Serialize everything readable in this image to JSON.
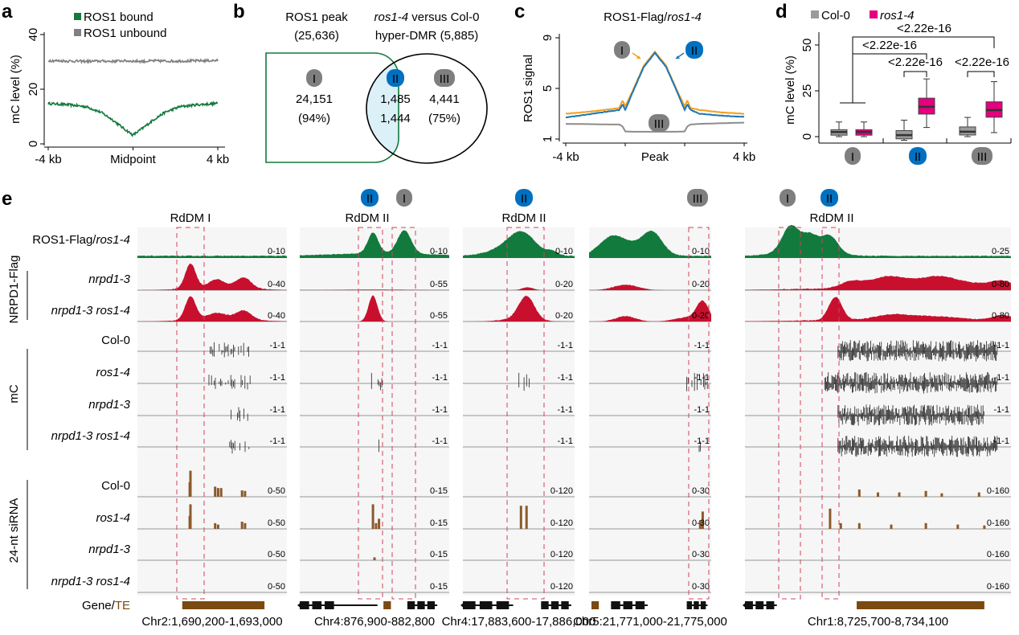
{
  "panel_labels": {
    "a": "a",
    "b": "b",
    "c": "c",
    "d": "d",
    "e": "e"
  },
  "colors": {
    "ros1_green": "#127a3c",
    "nrpd1_red": "#c8102e",
    "sirna_brown": "#8b5a2b",
    "te_brown": "#7a4a10",
    "col0_gray": "#9a9a9a",
    "ros1_4_magenta": "#e4007f",
    "badge_gray": "#7f7f7f",
    "badge_blue": "#0070c0",
    "overlap_fill": "#dcf0f8",
    "curve_orange": "#f0a020",
    "curve_blue": "#1f77b4",
    "dashed_box": "#d0435a"
  },
  "badges": {
    "I": "I",
    "II": "II",
    "III": "III"
  },
  "panel_b": {
    "left_title": "ROS1 peak",
    "left_count": "(25,636)",
    "right_title_italic": "ros1-4",
    "right_title_rest": " versus Col-0",
    "right_count": "hyper-DMR (5,885)",
    "region_I": {
      "count": "24,151",
      "percent": "(94%)"
    },
    "region_II": {
      "count_peak": "1,485",
      "count_dmr": "1,444"
    },
    "region_III": {
      "count": "4,441",
      "percent": "(75%)"
    }
  },
  "chart_data": [
    {
      "type": "line",
      "panel": "a",
      "ylabel": "mC level (%)",
      "ylim": [
        0,
        40
      ],
      "yticks": [
        "0",
        "20",
        "40"
      ],
      "xticks": [
        "-4 kb",
        "Midpoint",
        "4 kb"
      ],
      "x_kb": [
        -4,
        -3,
        -2.2,
        -1.5,
        -1,
        -0.5,
        0,
        0.5,
        1,
        1.5,
        2.2,
        3,
        4
      ],
      "legend_position": "top",
      "series": [
        {
          "name": "ROS1 bound",
          "color": "#127a3c",
          "y": [
            14.8,
            14.3,
            13.6,
            11.5,
            9.0,
            6.0,
            3.2,
            6.0,
            9.0,
            11.5,
            13.6,
            14.3,
            14.8
          ]
        },
        {
          "name": "ROS1 unbound",
          "color": "#808080",
          "y": [
            30.5,
            30.3,
            30.2,
            30.3,
            30.2,
            30.4,
            30.3,
            30.2,
            30.4,
            30.3,
            30.3,
            30.4,
            30.5
          ]
        }
      ]
    },
    {
      "type": "line",
      "panel": "c",
      "title_prefix": "ROS1-Flag/",
      "title_italic": "ros1-4",
      "ylabel": "ROS1 signal",
      "ylim": [
        1,
        9
      ],
      "yticks": [
        "1",
        "5",
        "9"
      ],
      "xticks": [
        "-4 kb",
        "Peak",
        "4 kb"
      ],
      "x": [
        -4,
        -3,
        -2,
        -1.6,
        -1.45,
        -1.33,
        -1,
        -0.5,
        0,
        0.5,
        1,
        1.33,
        1.45,
        1.6,
        2,
        3,
        4
      ],
      "series": [
        {
          "name": "I",
          "color": "#f0a020",
          "y": [
            3.0,
            3.15,
            3.35,
            3.45,
            4.05,
            3.6,
            4.8,
            6.8,
            7.9,
            6.8,
            4.8,
            3.6,
            4.05,
            3.45,
            3.3,
            3.1,
            3.0
          ]
        },
        {
          "name": "II",
          "color": "#1f77b4",
          "y": [
            2.7,
            2.95,
            3.2,
            3.3,
            3.75,
            3.3,
            4.7,
            6.7,
            7.8,
            6.7,
            4.7,
            3.3,
            3.75,
            3.3,
            3.0,
            2.85,
            2.75
          ]
        },
        {
          "name": "III",
          "color": "#8c8c8c",
          "y": [
            2.2,
            2.18,
            2.15,
            2.15,
            2.0,
            1.6,
            1.58,
            1.58,
            1.58,
            1.58,
            1.58,
            1.6,
            2.0,
            2.15,
            2.2,
            2.25,
            2.3
          ]
        }
      ]
    },
    {
      "type": "box",
      "panel": "d",
      "ylabel": "mC level (%)",
      "ylim": [
        0,
        55
      ],
      "yticks": [
        "0",
        "25",
        "50"
      ],
      "categories": [
        "I",
        "II",
        "III"
      ],
      "legend": [
        {
          "name": "Col-0",
          "color": "#9a9a9a"
        },
        {
          "name": "ros1-4",
          "color": "#e4007f"
        }
      ],
      "boxes": [
        {
          "group": "I",
          "series": "Col-0",
          "min": 0,
          "q1": 0.8,
          "median": 2.5,
          "q3": 3.8,
          "max": 8
        },
        {
          "group": "I",
          "series": "ros1-4",
          "min": 0,
          "q1": 0.8,
          "median": 2.5,
          "q3": 3.8,
          "max": 8
        },
        {
          "group": "II",
          "series": "Col-0",
          "min": -2,
          "q1": -1.2,
          "median": 0.8,
          "q3": 3.3,
          "max": 9
        },
        {
          "group": "II",
          "series": "ros1-4",
          "min": 5,
          "q1": 12.3,
          "median": 16.3,
          "q3": 21,
          "max": 31.5
        },
        {
          "group": "III",
          "series": "Col-0",
          "min": 0,
          "q1": 0.9,
          "median": 2.7,
          "q3": 5.3,
          "max": 10.5
        },
        {
          "group": "III",
          "series": "ros1-4",
          "min": 2.2,
          "q1": 10.6,
          "median": 14.5,
          "q3": 19,
          "max": 30
        }
      ],
      "comparisons": [
        {
          "between": "I vs III ros1-4",
          "p": "<2.22e-16"
        },
        {
          "between": "I vs II ros1-4",
          "p": "<2.22e-16"
        },
        {
          "between": "II Col-0 vs ros1-4",
          "p": "<2.22e-16"
        },
        {
          "between": "III Col-0 vs ros1-4",
          "p": "<2.22e-16"
        }
      ]
    }
  ],
  "panel_e": {
    "ros1_track": {
      "prefix": "ROS1-Flag/",
      "italic": "ros1-4"
    },
    "groups": {
      "nrpd1": "NRPD1-Flag",
      "mc": "mC",
      "sirna": "24-nt siRNA"
    },
    "row_labels": [
      "nrpd1-3",
      "nrpd1-3 ros1-4",
      "Col-0",
      "ros1-4",
      "nrpd1-3",
      "nrpd1-3 ros1-4",
      "Col-0",
      "ros1-4",
      "nrpd1-3",
      "nrpd1-3 ros1-4"
    ],
    "gene_te": {
      "gene": "Gene/",
      "te": "TE"
    },
    "loci": [
      {
        "title": "RdDM I",
        "badges": [],
        "coord": "Chr2:1,690,200-1,693,000",
        "scales": [
          "0-10",
          "0-40",
          "0-40",
          "-1-1",
          "-1-1",
          "-1-1",
          "-1-1",
          "0-50",
          "0-50",
          "0-50",
          "0-50"
        ]
      },
      {
        "title": "RdDM II",
        "badges": [
          "II",
          "I"
        ],
        "coord": "Chr4:876,900-882,800",
        "scales": [
          "0-10",
          "0-55",
          "0-55",
          "-1-1",
          "-1-1",
          "-1-1",
          "-1-1",
          "0-15",
          "0-15",
          "0-15",
          "0-15"
        ]
      },
      {
        "title": "RdDM II",
        "badges": [
          "II"
        ],
        "coord": "Chr4:17,883,600-17,886,000",
        "scales": [
          "0-10",
          "0-20",
          "0-20",
          "-1-1",
          "-1-1",
          "-1-1",
          "-1-1",
          "0-120",
          "0-120",
          "0-120",
          "0-120"
        ]
      },
      {
        "title": "",
        "badges": [
          "III"
        ],
        "coord": "Chr5:21,771,000-21,775,000",
        "scales": [
          "0-10",
          "0-20",
          "0-20",
          "-1-1",
          "-1-1",
          "-1-1",
          "-1-1",
          "0-30",
          "0-30",
          "0-30",
          "0-30"
        ]
      },
      {
        "title": "RdDM II",
        "badges": [
          "I",
          "II"
        ],
        "coord": "Chr1:8,725,700-8,734,100",
        "scales": [
          "0-25",
          "0-80",
          "0-80",
          "-1-1",
          "-1-1",
          "-1-1",
          "-1-1",
          "0-160",
          "0-160",
          "0-160",
          "0-160"
        ]
      }
    ]
  }
}
